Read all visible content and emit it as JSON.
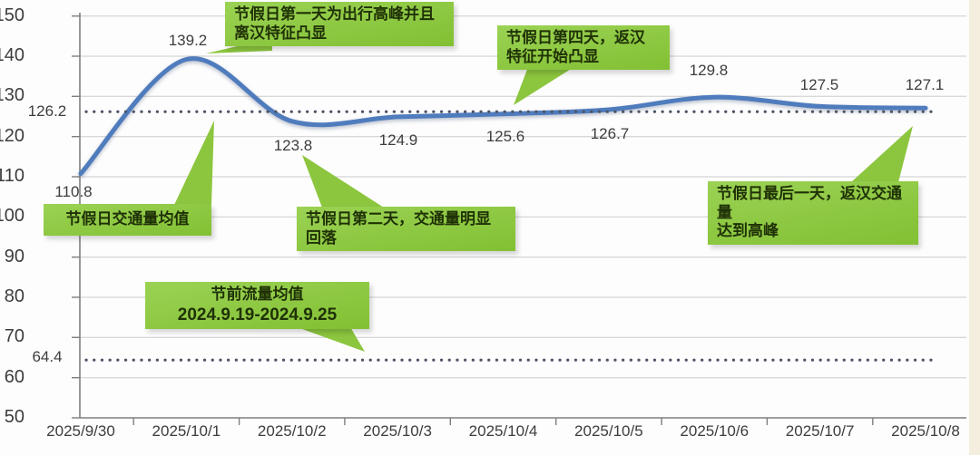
{
  "chart_data": {
    "type": "line",
    "title": "",
    "categories": [
      "2025/9/30",
      "2025/10/1",
      "2025/10/2",
      "2025/10/3",
      "2025/10/4",
      "2025/10/5",
      "2025/10/6",
      "2025/10/7",
      "2025/10/8"
    ],
    "values": [
      110.8,
      139.2,
      123.8,
      124.9,
      125.6,
      126.7,
      129.8,
      127.5,
      127.1
    ],
    "yticks": [
      150,
      140,
      130,
      120,
      110,
      100,
      90,
      80,
      70,
      60,
      50
    ],
    "ylim": [
      50,
      150
    ],
    "xlabel": "",
    "ylabel": "",
    "grid": "horizontal",
    "legend": "none",
    "average_lines": [
      {
        "name": "holiday-average",
        "value": 126.2,
        "style": "dotted"
      },
      {
        "name": "pre-holiday-average",
        "value": 64.4,
        "style": "dotted"
      }
    ],
    "annotations": [
      {
        "id": "first-day",
        "lines": [
          "节假日第一天为出行高峰并且",
          "离汉特征凸显"
        ]
      },
      {
        "id": "fourth-day",
        "lines": [
          "节假日第四天，返汉",
          "特征开始凸显"
        ]
      },
      {
        "id": "holiday-avg",
        "lines": [
          "节假日交通量均值"
        ]
      },
      {
        "id": "second-day",
        "lines": [
          "节假日第二天，交通量明显",
          "回落"
        ]
      },
      {
        "id": "last-day",
        "lines": [
          "节假日最后一天，返汉交通量",
          "达到高峰"
        ]
      },
      {
        "id": "pre-holiday-avg",
        "lines": [
          "节前流量均值",
          "2024.9.19-2024.9.25"
        ]
      }
    ],
    "colors": {
      "line": "#4f7cbd",
      "callout_green": "#8cc63f",
      "dotted": "#4d5566",
      "grid": "#cbcbcb",
      "axis": "#7f7f7f",
      "label_text": "#3d3d3d",
      "callout_text": "#1f3106",
      "edge_strip": "#f3eedd"
    }
  }
}
